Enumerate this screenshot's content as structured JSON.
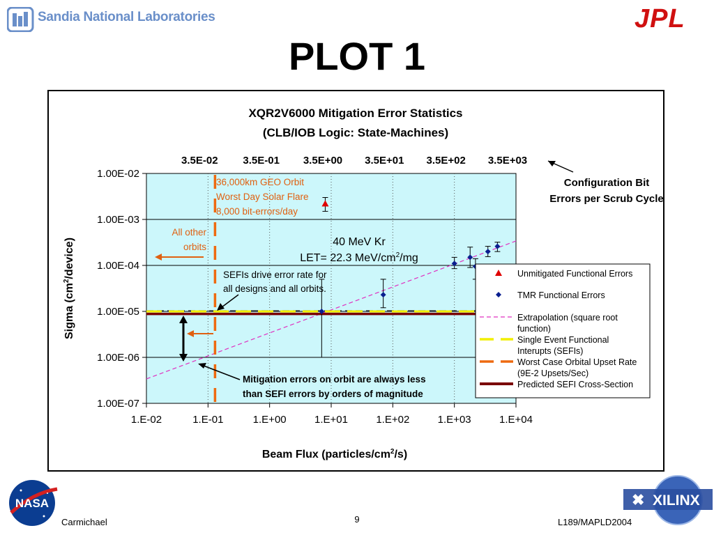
{
  "header": {
    "sandia_text": "Sandia National Laboratories",
    "jpl_text": "JPL",
    "title": "PLOT 1"
  },
  "footer": {
    "author": "Carmichael",
    "page": "9",
    "code": "L189/MAPLD2004",
    "xilinx_text": "XILINX",
    "nasa_text": "NASA"
  },
  "chart_data": {
    "type": "scatter",
    "title": "XQR2V6000 Mitigation Error Statistics",
    "subtitle": "(CLB/IOB Logic: State-Machines)",
    "xlabel": "Beam Flux (particles/cm",
    "xlabel_sup": "2",
    "xlabel_tail": "/s)",
    "ylabel": "Sigma (cm",
    "ylabel_sup": "2",
    "ylabel_tail": "/device)",
    "xscale": "log",
    "yscale": "log",
    "xlim": [
      0.01,
      10000
    ],
    "ylim": [
      1e-07,
      0.01
    ],
    "x_tick_values": [
      0.01,
      0.1,
      1,
      10,
      100,
      1000,
      10000
    ],
    "x_tick_labels": [
      "1.E-02",
      "1.E-01",
      "1.E+00",
      "1.E+01",
      "1.E+02",
      "1.E+03",
      "1.E+04"
    ],
    "y_tick_values": [
      0.01,
      0.001,
      0.0001,
      1e-05,
      1e-06,
      1e-07
    ],
    "y_tick_labels": [
      "1.00E-02",
      "1.00E-03",
      "1.00E-04",
      "1.00E-05",
      "1.00E-06",
      "1.00E-07"
    ],
    "top_axis_labels": [
      "3.5E-02",
      "3.5E-01",
      "3.5E+00",
      "3.5E+01",
      "3.5E+02",
      "3.5E+03"
    ],
    "top_axis_caption": [
      "Configuration Bit",
      "Errors per Scrub Cycle"
    ],
    "grid": true,
    "legend_position": "right",
    "series": [
      {
        "name": "Unmitigated Functional Errors",
        "marker": "triangle",
        "color": "#e00000",
        "points": [
          {
            "x": 8,
            "y": 0.0022,
            "y_low": 0.0015,
            "y_high": 0.003
          }
        ]
      },
      {
        "name": "TMR Functional Errors",
        "marker": "diamond",
        "color": "#0a1f8f",
        "points": [
          {
            "x": 7,
            "y": 1e-05,
            "y_low": 1e-06,
            "y_high": 5e-05
          },
          {
            "x": 70,
            "y": 2.3e-05,
            "y_low": 1.2e-05,
            "y_high": 5e-05
          },
          {
            "x": 1000,
            "y": 0.00011,
            "y_low": 8.5e-05,
            "y_high": 0.00015
          },
          {
            "x": 1800,
            "y": 0.00015,
            "y_low": 9e-05,
            "y_high": 0.00025
          },
          {
            "x": 2200,
            "y": 9.5e-05,
            "y_low": 5e-05,
            "y_high": 0.00014
          },
          {
            "x": 3500,
            "y": 0.0002,
            "y_low": 0.000155,
            "y_high": 0.00026
          },
          {
            "x": 5000,
            "y": 0.00026,
            "y_low": 0.0002,
            "y_high": 0.00032
          }
        ]
      },
      {
        "name": "Extrapolation (square root function)",
        "line": "dashed",
        "color": "#e030c0",
        "x": [
          0.01,
          10000
        ],
        "y": [
          3.4e-07,
          0.00034
        ]
      },
      {
        "name": "Single Event Functional Interupts (SEFIs)",
        "line": "dashed",
        "color": "#f2ef00",
        "y_value": 1e-05
      },
      {
        "name": "Worst Case Orbital Upset Rate (9E-2 Upsets/Sec)",
        "line": "dashed",
        "color": "#ee6a10",
        "x_value": 0.13
      },
      {
        "name": "Predicted SEFI Cross-Section",
        "line": "solid",
        "color": "#7a0000",
        "y_value": 8.8e-06
      }
    ],
    "annotations": {
      "geo_orbit": [
        "36,000km GEO Orbit",
        "Worst Day Solar Flare",
        "8,000 bit-errors/day"
      ],
      "other_orbits": [
        "All other",
        "orbits"
      ],
      "kr_line1": "40 MeV Kr",
      "kr_line2_a": "LET= 22.3 MeV/cm",
      "kr_line2_sup": "2",
      "kr_line2_b": "/mg",
      "sefi_note": [
        "SEFIs drive error rate for",
        "all designs and all orbits."
      ],
      "mitigation_note": [
        "Mitigation errors on orbit are always less",
        "than SEFI errors by orders of magnitude"
      ]
    },
    "legend_labels": [
      [
        "Unmitigated Functional Errors"
      ],
      [
        "TMR Functional Errors"
      ],
      [
        "Extrapolation (square root",
        "function)"
      ],
      [
        "Single Event Functional",
        "Interupts (SEFIs)"
      ],
      [
        "Worst Case Orbital Upset Rate",
        "(9E-2 Upsets/Sec)"
      ],
      [
        "Predicted SEFI Cross-Section"
      ]
    ],
    "colors": {
      "plot_background": "#ccf7fb",
      "title_color": "#000000",
      "annotation_orange": "#e06010"
    }
  }
}
